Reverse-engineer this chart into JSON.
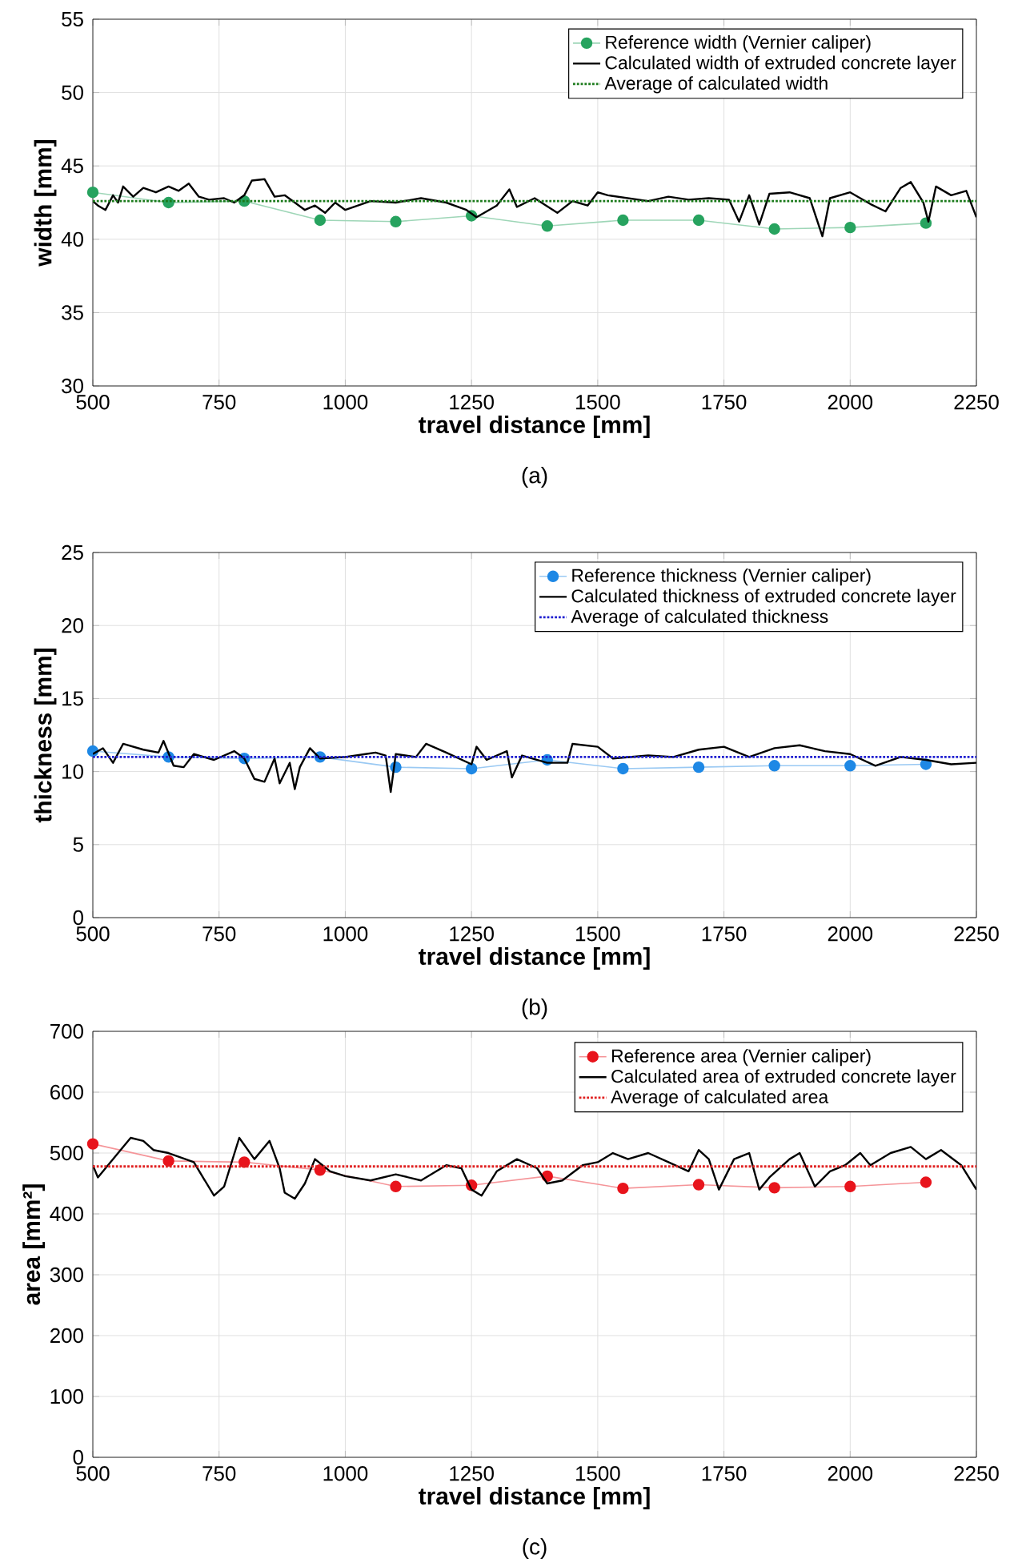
{
  "chart_data": [
    {
      "type": "line",
      "xlabel": "travel distance [mm]",
      "ylabel": "width [mm]",
      "annotations": [
        "(a)"
      ],
      "xlim": [
        500,
        2250
      ],
      "ylim": [
        30,
        55
      ],
      "xticks": [
        500,
        750,
        1000,
        1250,
        1500,
        1750,
        2000,
        2250
      ],
      "yticks": [
        30,
        35,
        40,
        45,
        50,
        55
      ],
      "grid": true,
      "legend": "top right",
      "series": [
        {
          "name": "Reference width (Vernier caliper)",
          "color": "#27a35f",
          "marker": "circle",
          "x": [
            500,
            650,
            800,
            950,
            1100,
            1250,
            1400,
            1550,
            1700,
            1850,
            2000,
            2150
          ],
          "values": [
            43.2,
            42.5,
            42.6,
            41.3,
            41.2,
            41.6,
            40.9,
            41.3,
            41.3,
            40.7,
            40.8,
            41.1
          ]
        },
        {
          "name": "Calculated width of extruded concrete layer",
          "color": "#000000",
          "marker": "none",
          "x": [
            500,
            510,
            525,
            540,
            550,
            560,
            580,
            600,
            625,
            650,
            670,
            690,
            710,
            730,
            760,
            780,
            800,
            815,
            840,
            860,
            880,
            900,
            920,
            940,
            960,
            980,
            1000,
            1050,
            1100,
            1150,
            1200,
            1240,
            1260,
            1300,
            1325,
            1340,
            1375,
            1420,
            1450,
            1480,
            1500,
            1520,
            1560,
            1600,
            1640,
            1680,
            1720,
            1760,
            1780,
            1800,
            1820,
            1840,
            1880,
            1920,
            1945,
            1960,
            2000,
            2040,
            2070,
            2100,
            2120,
            2145,
            2155,
            2170,
            2200,
            2230,
            2250
          ],
          "values": [
            42.6,
            42.3,
            42.0,
            43.0,
            42.5,
            43.6,
            42.9,
            43.5,
            43.2,
            43.6,
            43.3,
            43.8,
            42.9,
            42.7,
            42.8,
            42.5,
            43.0,
            44.0,
            44.1,
            42.9,
            43.0,
            42.5,
            42.0,
            42.3,
            41.8,
            42.5,
            42.0,
            42.6,
            42.5,
            42.8,
            42.5,
            42.0,
            41.5,
            42.3,
            43.4,
            42.2,
            42.8,
            41.8,
            42.6,
            42.3,
            43.2,
            43.0,
            42.8,
            42.6,
            42.9,
            42.7,
            42.8,
            42.7,
            41.2,
            43.0,
            41.0,
            43.1,
            43.2,
            42.8,
            40.2,
            42.8,
            43.2,
            42.4,
            41.9,
            43.5,
            43.9,
            42.5,
            41.2,
            43.6,
            43.0,
            43.3,
            41.5
          ]
        },
        {
          "name": "Average of calculated width",
          "color": "#1a7a1a",
          "marker": "none",
          "line_style": "dotted",
          "x": [
            500,
            2250
          ],
          "values": [
            42.6,
            42.6
          ]
        }
      ]
    },
    {
      "type": "line",
      "xlabel": "travel distance [mm]",
      "ylabel": "thickness [mm]",
      "annotations": [
        "(b)"
      ],
      "xlim": [
        500,
        2250
      ],
      "ylim": [
        0,
        25
      ],
      "xticks": [
        500,
        750,
        1000,
        1250,
        1500,
        1750,
        2000,
        2250
      ],
      "yticks": [
        0,
        5,
        10,
        15,
        20,
        25
      ],
      "grid": true,
      "legend": "top right",
      "series": [
        {
          "name": "Reference thickness (Vernier caliper)",
          "color": "#1e88e5",
          "marker": "circle",
          "x": [
            500,
            650,
            800,
            950,
            1100,
            1250,
            1400,
            1550,
            1700,
            1850,
            2000,
            2150
          ],
          "values": [
            11.4,
            11.0,
            10.9,
            11.0,
            10.3,
            10.2,
            10.8,
            10.2,
            10.3,
            10.4,
            10.4,
            10.5
          ]
        },
        {
          "name": "Calculated thickness of extruded concrete layer",
          "color": "#000000",
          "marker": "none",
          "x": [
            500,
            520,
            540,
            560,
            600,
            630,
            640,
            660,
            680,
            700,
            740,
            780,
            800,
            820,
            840,
            860,
            870,
            890,
            900,
            910,
            930,
            950,
            1000,
            1040,
            1060,
            1080,
            1090,
            1100,
            1140,
            1160,
            1200,
            1250,
            1260,
            1280,
            1320,
            1330,
            1350,
            1400,
            1440,
            1450,
            1500,
            1530,
            1600,
            1650,
            1700,
            1750,
            1800,
            1850,
            1900,
            1950,
            2000,
            2050,
            2100,
            2150,
            2200,
            2250
          ],
          "values": [
            11.2,
            11.6,
            10.6,
            11.9,
            11.5,
            11.3,
            12.1,
            10.4,
            10.3,
            11.2,
            10.8,
            11.4,
            10.9,
            9.5,
            9.3,
            10.9,
            9.2,
            10.6,
            8.8,
            10.3,
            11.6,
            10.9,
            11.0,
            11.2,
            11.3,
            11.1,
            8.6,
            11.2,
            11.0,
            11.9,
            11.3,
            10.5,
            11.7,
            10.8,
            11.4,
            9.6,
            11.1,
            10.6,
            10.6,
            11.9,
            11.7,
            10.9,
            11.1,
            11.0,
            11.5,
            11.7,
            11.0,
            11.6,
            11.8,
            11.4,
            11.2,
            10.4,
            11.0,
            10.8,
            10.5,
            10.6
          ]
        },
        {
          "name": "Average of calculated thickness",
          "color": "#2020d0",
          "marker": "none",
          "line_style": "dotted",
          "x": [
            500,
            2250
          ],
          "values": [
            11.0,
            11.0
          ]
        }
      ]
    },
    {
      "type": "line",
      "xlabel": "travel distance [mm]",
      "ylabel": "area [mm²]",
      "annotations": [
        "(c)"
      ],
      "xlim": [
        500,
        2250
      ],
      "ylim": [
        0,
        700
      ],
      "xticks": [
        500,
        750,
        1000,
        1250,
        1500,
        1750,
        2000,
        2250
      ],
      "yticks": [
        0,
        100,
        200,
        300,
        400,
        500,
        600,
        700
      ],
      "grid": true,
      "legend": "top right",
      "series": [
        {
          "name": "Reference area (Vernier caliper)",
          "color": "#e8141c",
          "marker": "circle",
          "x": [
            500,
            650,
            800,
            950,
            1100,
            1250,
            1400,
            1550,
            1700,
            1850,
            2000,
            2150
          ],
          "values": [
            515,
            487,
            485,
            472,
            445,
            447,
            462,
            442,
            448,
            443,
            445,
            452
          ]
        },
        {
          "name": "Calculated area of extruded concrete layer",
          "color": "#000000",
          "marker": "none",
          "x": [
            500,
            510,
            550,
            575,
            600,
            620,
            650,
            700,
            740,
            760,
            790,
            820,
            850,
            870,
            880,
            900,
            920,
            940,
            970,
            1000,
            1050,
            1100,
            1150,
            1200,
            1230,
            1250,
            1270,
            1300,
            1340,
            1380,
            1400,
            1430,
            1470,
            1500,
            1530,
            1560,
            1600,
            1640,
            1680,
            1700,
            1720,
            1740,
            1770,
            1800,
            1820,
            1840,
            1880,
            1900,
            1930,
            1960,
            1990,
            2020,
            2040,
            2080,
            2120,
            2150,
            2180,
            2220,
            2250
          ],
          "values": [
            480,
            460,
            500,
            525,
            520,
            505,
            500,
            485,
            430,
            445,
            525,
            490,
            520,
            475,
            435,
            425,
            450,
            490,
            470,
            462,
            455,
            465,
            455,
            480,
            475,
            440,
            430,
            470,
            490,
            475,
            450,
            455,
            480,
            485,
            500,
            490,
            500,
            485,
            470,
            505,
            490,
            440,
            490,
            500,
            440,
            460,
            490,
            500,
            445,
            470,
            480,
            500,
            480,
            500,
            510,
            490,
            505,
            480,
            440
          ]
        },
        {
          "name": "Average of calculated area",
          "color": "#e02020",
          "marker": "none",
          "line_style": "dotted",
          "x": [
            500,
            2250
          ],
          "values": [
            478,
            478
          ]
        }
      ]
    }
  ]
}
